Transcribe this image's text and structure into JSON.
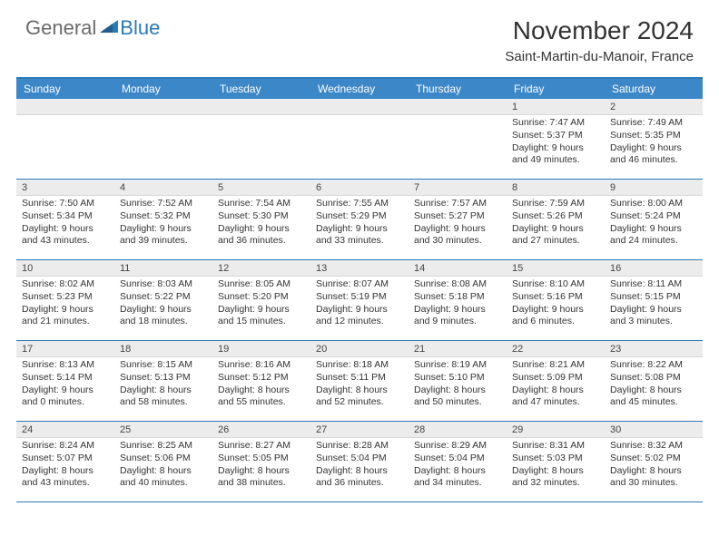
{
  "brand": {
    "general": "General",
    "blue": "Blue"
  },
  "title": "November 2024",
  "location": "Saint-Martin-du-Manoir, France",
  "colors": {
    "header_bar": "#3c87c7",
    "accent_line": "#2a7ab8",
    "daynum_bg": "#ececec",
    "text": "#333333",
    "logo_gray": "#6a6a6a",
    "logo_blue": "#2a7ab8"
  },
  "daynames": [
    "Sunday",
    "Monday",
    "Tuesday",
    "Wednesday",
    "Thursday",
    "Friday",
    "Saturday"
  ],
  "layout": {
    "first_day_column": 5,
    "total_days": 30
  },
  "days": {
    "1": {
      "sunrise": "7:47 AM",
      "sunset": "5:37 PM",
      "daylight_h": 9,
      "daylight_m": 49
    },
    "2": {
      "sunrise": "7:49 AM",
      "sunset": "5:35 PM",
      "daylight_h": 9,
      "daylight_m": 46
    },
    "3": {
      "sunrise": "7:50 AM",
      "sunset": "5:34 PM",
      "daylight_h": 9,
      "daylight_m": 43
    },
    "4": {
      "sunrise": "7:52 AM",
      "sunset": "5:32 PM",
      "daylight_h": 9,
      "daylight_m": 39
    },
    "5": {
      "sunrise": "7:54 AM",
      "sunset": "5:30 PM",
      "daylight_h": 9,
      "daylight_m": 36
    },
    "6": {
      "sunrise": "7:55 AM",
      "sunset": "5:29 PM",
      "daylight_h": 9,
      "daylight_m": 33
    },
    "7": {
      "sunrise": "7:57 AM",
      "sunset": "5:27 PM",
      "daylight_h": 9,
      "daylight_m": 30
    },
    "8": {
      "sunrise": "7:59 AM",
      "sunset": "5:26 PM",
      "daylight_h": 9,
      "daylight_m": 27
    },
    "9": {
      "sunrise": "8:00 AM",
      "sunset": "5:24 PM",
      "daylight_h": 9,
      "daylight_m": 24
    },
    "10": {
      "sunrise": "8:02 AM",
      "sunset": "5:23 PM",
      "daylight_h": 9,
      "daylight_m": 21
    },
    "11": {
      "sunrise": "8:03 AM",
      "sunset": "5:22 PM",
      "daylight_h": 9,
      "daylight_m": 18
    },
    "12": {
      "sunrise": "8:05 AM",
      "sunset": "5:20 PM",
      "daylight_h": 9,
      "daylight_m": 15
    },
    "13": {
      "sunrise": "8:07 AM",
      "sunset": "5:19 PM",
      "daylight_h": 9,
      "daylight_m": 12
    },
    "14": {
      "sunrise": "8:08 AM",
      "sunset": "5:18 PM",
      "daylight_h": 9,
      "daylight_m": 9
    },
    "15": {
      "sunrise": "8:10 AM",
      "sunset": "5:16 PM",
      "daylight_h": 9,
      "daylight_m": 6
    },
    "16": {
      "sunrise": "8:11 AM",
      "sunset": "5:15 PM",
      "daylight_h": 9,
      "daylight_m": 3
    },
    "17": {
      "sunrise": "8:13 AM",
      "sunset": "5:14 PM",
      "daylight_h": 9,
      "daylight_m": 0
    },
    "18": {
      "sunrise": "8:15 AM",
      "sunset": "5:13 PM",
      "daylight_h": 8,
      "daylight_m": 58
    },
    "19": {
      "sunrise": "8:16 AM",
      "sunset": "5:12 PM",
      "daylight_h": 8,
      "daylight_m": 55
    },
    "20": {
      "sunrise": "8:18 AM",
      "sunset": "5:11 PM",
      "daylight_h": 8,
      "daylight_m": 52
    },
    "21": {
      "sunrise": "8:19 AM",
      "sunset": "5:10 PM",
      "daylight_h": 8,
      "daylight_m": 50
    },
    "22": {
      "sunrise": "8:21 AM",
      "sunset": "5:09 PM",
      "daylight_h": 8,
      "daylight_m": 47
    },
    "23": {
      "sunrise": "8:22 AM",
      "sunset": "5:08 PM",
      "daylight_h": 8,
      "daylight_m": 45
    },
    "24": {
      "sunrise": "8:24 AM",
      "sunset": "5:07 PM",
      "daylight_h": 8,
      "daylight_m": 43
    },
    "25": {
      "sunrise": "8:25 AM",
      "sunset": "5:06 PM",
      "daylight_h": 8,
      "daylight_m": 40
    },
    "26": {
      "sunrise": "8:27 AM",
      "sunset": "5:05 PM",
      "daylight_h": 8,
      "daylight_m": 38
    },
    "27": {
      "sunrise": "8:28 AM",
      "sunset": "5:04 PM",
      "daylight_h": 8,
      "daylight_m": 36
    },
    "28": {
      "sunrise": "8:29 AM",
      "sunset": "5:04 PM",
      "daylight_h": 8,
      "daylight_m": 34
    },
    "29": {
      "sunrise": "8:31 AM",
      "sunset": "5:03 PM",
      "daylight_h": 8,
      "daylight_m": 32
    },
    "30": {
      "sunrise": "8:32 AM",
      "sunset": "5:02 PM",
      "daylight_h": 8,
      "daylight_m": 30
    }
  },
  "labels": {
    "sunrise": "Sunrise: ",
    "sunset": "Sunset: ",
    "daylight_prefix": "Daylight: ",
    "hours_word": " hours",
    "and_word": "and ",
    "minutes_word": " minutes."
  }
}
